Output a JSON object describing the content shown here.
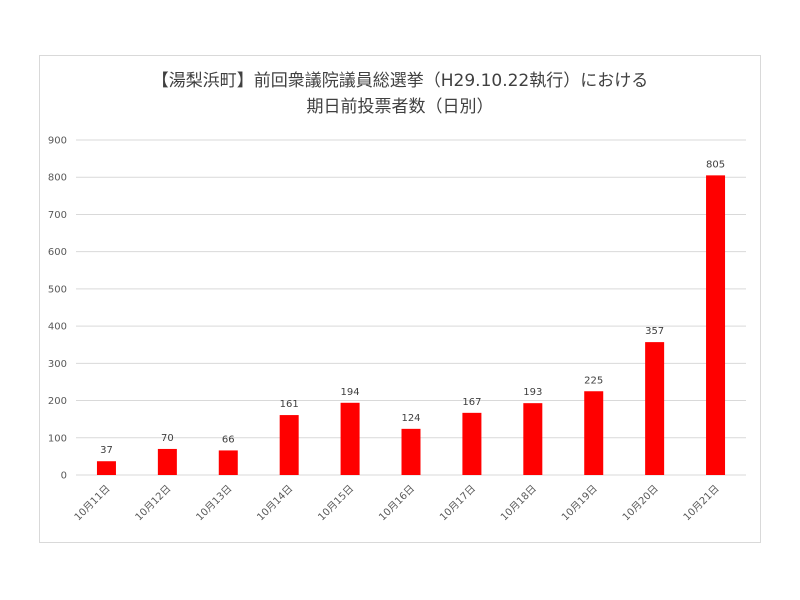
{
  "chart_data": {
    "type": "bar",
    "title_line1": "【湯梨浜町】前回衆議院議員総選挙（H29.10.22執行）における",
    "title_line2": "期日前投票者数（日別）",
    "categories": [
      "10月11日",
      "10月12日",
      "10月13日",
      "10月14日",
      "10月15日",
      "10月16日",
      "10月17日",
      "10月18日",
      "10月19日",
      "10月20日",
      "10月21日"
    ],
    "values": [
      37,
      70,
      66,
      161,
      194,
      124,
      167,
      193,
      225,
      357,
      805
    ],
    "ylim": [
      0,
      900
    ],
    "yticks": [
      0,
      100,
      200,
      300,
      400,
      500,
      600,
      700,
      800,
      900
    ],
    "grid": true,
    "legend": "none",
    "bar_color": "#ff0000",
    "grid_color": "#d9d9d9"
  }
}
